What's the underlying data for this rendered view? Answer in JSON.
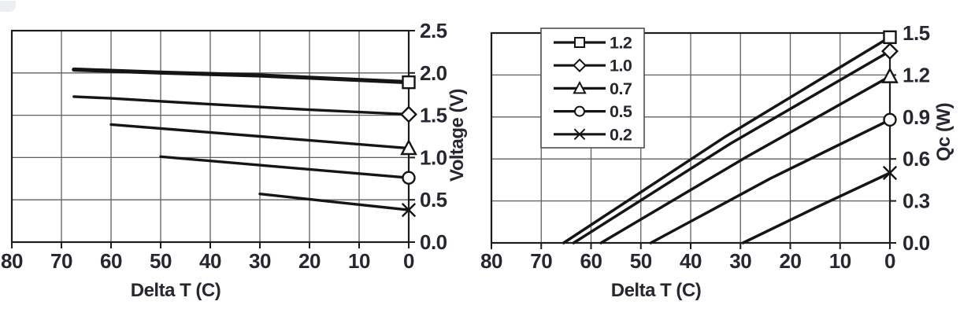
{
  "colors": {
    "line": "#151515",
    "grid": "#606060",
    "border": "#1c1c1c",
    "text": "#272730",
    "background": "#ffffff",
    "legend_border": "#4e4e4e",
    "marker_fill": "#ffffff",
    "artifact": "#dde2e6"
  },
  "chart_data": [
    {
      "type": "line",
      "name": "voltage-vs-delta-t",
      "title": "",
      "xlabel": "Delta T (C)",
      "ylabel": "Voltage (V)",
      "xlim": [
        0,
        80
      ],
      "x_reversed": true,
      "x_ticks": [
        80,
        70,
        60,
        50,
        40,
        30,
        20,
        10,
        0
      ],
      "x_tick_labels": [
        "80",
        "70",
        "60",
        "50",
        "40",
        "30",
        "20",
        "10",
        "0"
      ],
      "ylim": [
        0,
        2.5
      ],
      "y_ticks": [
        0,
        0.5,
        1.0,
        1.5,
        2.0,
        2.5
      ],
      "y_tick_labels": [
        "0.0",
        "0.5",
        "1.0",
        "1.5",
        "2.0",
        "2.5"
      ],
      "grid": true,
      "legend": null,
      "series": [
        {
          "name": "1.2",
          "marker": "square",
          "line_width": 5.2,
          "points": [
            [
              67.5,
              2.04
            ],
            [
              50,
              2.005
            ],
            [
              30,
              1.97
            ],
            [
              0,
              1.89
            ]
          ]
        },
        {
          "name": "1.0",
          "marker": "diamond",
          "line_width": 3.4,
          "points": [
            [
              67.5,
              1.72
            ],
            [
              60,
              1.7
            ],
            [
              40,
              1.63
            ],
            [
              20,
              1.565
            ],
            [
              0,
              1.51
            ]
          ]
        },
        {
          "name": "0.7",
          "marker": "triangle",
          "line_width": 3.4,
          "points": [
            [
              60,
              1.39
            ],
            [
              30,
              1.25
            ],
            [
              0,
              1.11
            ]
          ]
        },
        {
          "name": "0.5",
          "marker": "circle",
          "line_width": 3.4,
          "points": [
            [
              50,
              1.01
            ],
            [
              25,
              0.885
            ],
            [
              0,
              0.76
            ]
          ]
        },
        {
          "name": "0.2",
          "marker": "x",
          "line_width": 3.4,
          "points": [
            [
              30,
              0.57
            ],
            [
              15,
              0.475
            ],
            [
              0,
              0.38
            ]
          ]
        }
      ]
    },
    {
      "type": "line",
      "name": "qc-vs-delta-t",
      "title": "",
      "xlabel": "Delta T (C)",
      "ylabel": "Qc (W)",
      "xlim": [
        0,
        80
      ],
      "x_reversed": true,
      "x_ticks": [
        80,
        70,
        60,
        50,
        40,
        30,
        20,
        10,
        0
      ],
      "x_tick_labels": [
        "80",
        "70",
        "60",
        "50",
        "40",
        "30",
        "20",
        "10",
        "0"
      ],
      "ylim": [
        0,
        1.5
      ],
      "y_ticks": [
        0,
        0.3,
        0.6,
        0.9,
        1.2,
        1.5
      ],
      "y_tick_labels": [
        "0.0",
        "0.3",
        "0.6",
        "0.9",
        "1.2",
        "1.5"
      ],
      "grid": true,
      "legend": {
        "position": "top-left",
        "entries": [
          "1.2",
          "1.0",
          "0.7",
          "0.5",
          "0.2"
        ]
      },
      "series": [
        {
          "name": "1.2",
          "marker": "square",
          "line_width": 3.5,
          "points": [
            [
              65.5,
              0
            ],
            [
              33,
              0.76
            ],
            [
              0,
              1.47
            ]
          ]
        },
        {
          "name": "1.0",
          "marker": "diamond",
          "line_width": 3.5,
          "points": [
            [
              63.5,
              0
            ],
            [
              32,
              0.71
            ],
            [
              0,
              1.37
            ]
          ]
        },
        {
          "name": "0.7",
          "marker": "triangle",
          "line_width": 3.5,
          "points": [
            [
              58,
              0
            ],
            [
              29,
              0.61
            ],
            [
              0,
              1.19
            ]
          ]
        },
        {
          "name": "0.5",
          "marker": "circle",
          "line_width": 3.5,
          "points": [
            [
              48,
              0
            ],
            [
              24,
              0.46
            ],
            [
              0,
              0.88
            ]
          ]
        },
        {
          "name": "0.2",
          "marker": "x",
          "line_width": 3.5,
          "points": [
            [
              29.5,
              0
            ],
            [
              15,
              0.25
            ],
            [
              0,
              0.5
            ]
          ]
        }
      ]
    }
  ]
}
